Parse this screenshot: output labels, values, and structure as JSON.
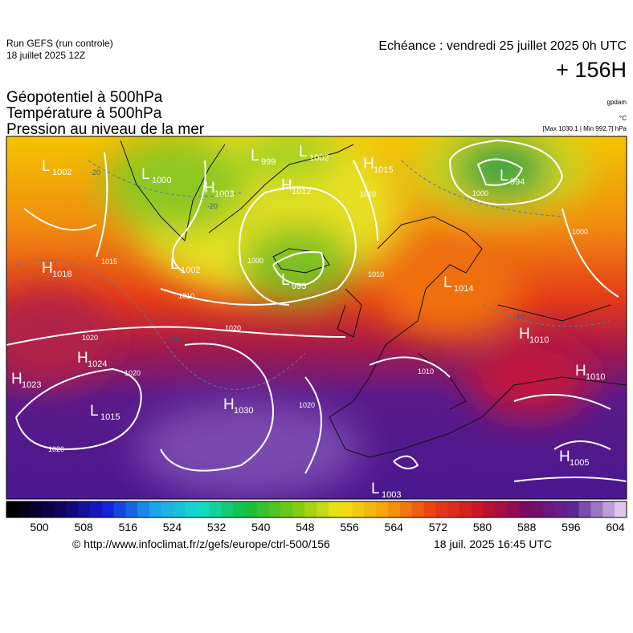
{
  "header": {
    "run": "Run GEFS (run controle)",
    "date": "18 juillet 2025 12Z",
    "echeance": "Echéance : vendredi 25 juillet 2025 0h UTC",
    "lead": "+ 156H",
    "fields": [
      "Géopotentiel à 500hPa",
      "Température à 500hPa",
      "Pression au niveau de la mer"
    ],
    "units": [
      "gpdam",
      "°C",
      "[Max 1030.1 | Min 992.7] hPa"
    ]
  },
  "map": {
    "centers": [
      {
        "type": "L",
        "value": "1002"
      },
      {
        "type": "L",
        "value": "1000"
      },
      {
        "type": "L",
        "value": "999"
      },
      {
        "type": "L",
        "value": "1002"
      },
      {
        "type": "H",
        "value": "1015"
      },
      {
        "type": "H",
        "value": "1003"
      },
      {
        "type": "H",
        "value": "1012"
      },
      {
        "type": "L",
        "value": "994"
      },
      {
        "type": "H",
        "value": "1018"
      },
      {
        "type": "L",
        "value": "1002"
      },
      {
        "type": "L",
        "value": "993"
      },
      {
        "type": "L",
        "value": "1014"
      },
      {
        "type": "H",
        "value": "1010"
      },
      {
        "type": "H",
        "value": "1010"
      },
      {
        "type": "H",
        "value": "1024"
      },
      {
        "type": "H",
        "value": "1023"
      },
      {
        "type": "L",
        "value": "1015"
      },
      {
        "type": "H",
        "value": "1030"
      },
      {
        "type": "H",
        "value": "1005"
      },
      {
        "type": "L",
        "value": "1003"
      }
    ],
    "isobar_labels": [
      "1020",
      "1020",
      "1020",
      "1020",
      "1020",
      "1010",
      "1010",
      "1010",
      "1000",
      "1000",
      "1000",
      "1015",
      "1010"
    ],
    "temperature_labels": [
      "-20",
      "-20",
      "-15",
      "-10"
    ]
  },
  "colorbar": {
    "ticks": [
      500,
      508,
      516,
      524,
      532,
      540,
      548,
      556,
      564,
      572,
      580,
      588,
      596,
      604
    ]
  },
  "footer": {
    "url": "© http://www.infoclimat.fr/z/gefs/europe/ctrl-500/156",
    "time": "18 juil. 2025 16:45 UTC"
  }
}
